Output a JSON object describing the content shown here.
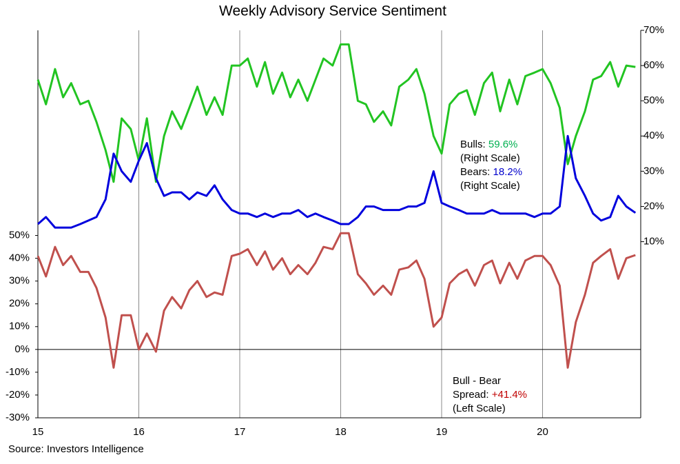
{
  "chart_data": {
    "type": "line",
    "title": "Weekly Advisory Service Sentiment",
    "source": "Source: Investors Intelligence",
    "x": [
      15,
      15.08,
      15.17,
      15.25,
      15.33,
      15.42,
      15.5,
      15.58,
      15.67,
      15.75,
      15.83,
      15.92,
      16,
      16.08,
      16.17,
      16.25,
      16.33,
      16.42,
      16.5,
      16.58,
      16.67,
      16.75,
      16.83,
      16.92,
      17,
      17.08,
      17.17,
      17.25,
      17.33,
      17.42,
      17.5,
      17.58,
      17.67,
      17.75,
      17.83,
      17.92,
      18,
      18.08,
      18.17,
      18.25,
      18.33,
      18.42,
      18.5,
      18.58,
      18.67,
      18.75,
      18.83,
      18.92,
      19,
      19.08,
      19.17,
      19.25,
      19.33,
      19.42,
      19.5,
      19.58,
      19.67,
      19.75,
      19.83,
      19.92,
      20,
      20.08,
      20.17,
      20.25,
      20.33,
      20.42,
      20.5,
      20.58,
      20.67,
      20.75,
      20.83,
      20.92
    ],
    "series": [
      {
        "name": "Bulls",
        "color": "#22c422",
        "axis": "y2",
        "values": [
          56,
          49,
          59,
          51,
          55,
          49,
          50,
          44,
          36,
          27,
          45,
          42,
          33,
          45,
          27,
          40,
          47,
          42,
          48,
          54,
          46,
          51,
          46,
          60,
          60,
          62,
          54,
          61,
          52,
          58,
          51,
          56,
          50,
          56,
          62,
          60,
          66,
          66,
          50,
          49,
          44,
          47,
          43,
          54,
          56,
          59,
          52,
          40,
          35,
          49,
          52,
          53,
          46,
          55,
          58,
          47,
          56,
          49,
          57,
          58,
          59,
          55,
          48,
          32,
          40,
          47,
          56,
          57,
          61,
          54,
          60,
          59.6
        ]
      },
      {
        "name": "Bears",
        "color": "#0000dd",
        "axis": "y2",
        "values": [
          15,
          17,
          14,
          14,
          14,
          15,
          16,
          17,
          22,
          35,
          30,
          27,
          33,
          38,
          28,
          23,
          24,
          24,
          22,
          24,
          23,
          26,
          22,
          19,
          18,
          18,
          17,
          18,
          17,
          18,
          18,
          19,
          17,
          18,
          17,
          16,
          15,
          15,
          17,
          20,
          20,
          19,
          19,
          19,
          20,
          20,
          21,
          30,
          21,
          20,
          19,
          18,
          18,
          18,
          19,
          18,
          18,
          18,
          18,
          17,
          18,
          18,
          20,
          40,
          28,
          23,
          18,
          16,
          17,
          23,
          20,
          18.2
        ]
      },
      {
        "name": "Bull - Bear Spread",
        "color": "#c0504d",
        "axis": "y",
        "values": [
          41,
          32,
          45,
          37,
          41,
          34,
          34,
          27,
          14,
          -8,
          15,
          15,
          0,
          7,
          -1,
          17,
          23,
          18,
          26,
          30,
          23,
          25,
          24,
          41,
          42,
          44,
          37,
          43,
          35,
          40,
          33,
          37,
          33,
          38,
          45,
          44,
          51,
          51,
          33,
          29,
          24,
          28,
          24,
          35,
          36,
          39,
          31,
          10,
          14,
          29,
          33,
          35,
          28,
          37,
          39,
          29,
          38,
          31,
          39,
          41,
          41,
          37,
          28,
          -8,
          12,
          24,
          38,
          41,
          44,
          31,
          40,
          41.4
        ]
      }
    ],
    "xlim": [
      15,
      21
    ],
    "xticks": [
      15,
      16,
      17,
      18,
      19,
      20
    ],
    "ylim": [
      -30,
      140
    ],
    "yticks": [
      {
        "value": -30,
        "label": "-30%"
      },
      {
        "value": -20,
        "label": "-20%"
      },
      {
        "value": -10,
        "label": "-10%"
      },
      {
        "value": 0,
        "label": "0%"
      },
      {
        "value": 10,
        "label": "10%"
      },
      {
        "value": 20,
        "label": "20%"
      },
      {
        "value": 30,
        "label": "30%"
      },
      {
        "value": 40,
        "label": "40%"
      },
      {
        "value": 50,
        "label": "50%"
      }
    ],
    "y2lim": [
      -40,
      70
    ],
    "y2ticks": [
      {
        "value": 10,
        "label": "10%"
      },
      {
        "value": 20,
        "label": "20%"
      },
      {
        "value": 30,
        "label": "30%"
      },
      {
        "value": 40,
        "label": "40%"
      },
      {
        "value": 50,
        "label": "50%"
      },
      {
        "value": 60,
        "label": "60%"
      },
      {
        "value": 70,
        "label": "70%"
      }
    ],
    "annotations": [
      {
        "lines": [
          "Bulls:",
          "(Right Scale)"
        ],
        "value": "59.6%",
        "color": "#00b050"
      },
      {
        "lines": [
          "Bears:",
          "(Right Scale)"
        ],
        "value": "18.2%",
        "color": "#0000cc"
      },
      {
        "lines": [
          "Bull - Bear",
          "Spread:",
          "(Left Scale)"
        ],
        "value": "+41.4%",
        "color": "#c00000"
      }
    ]
  }
}
